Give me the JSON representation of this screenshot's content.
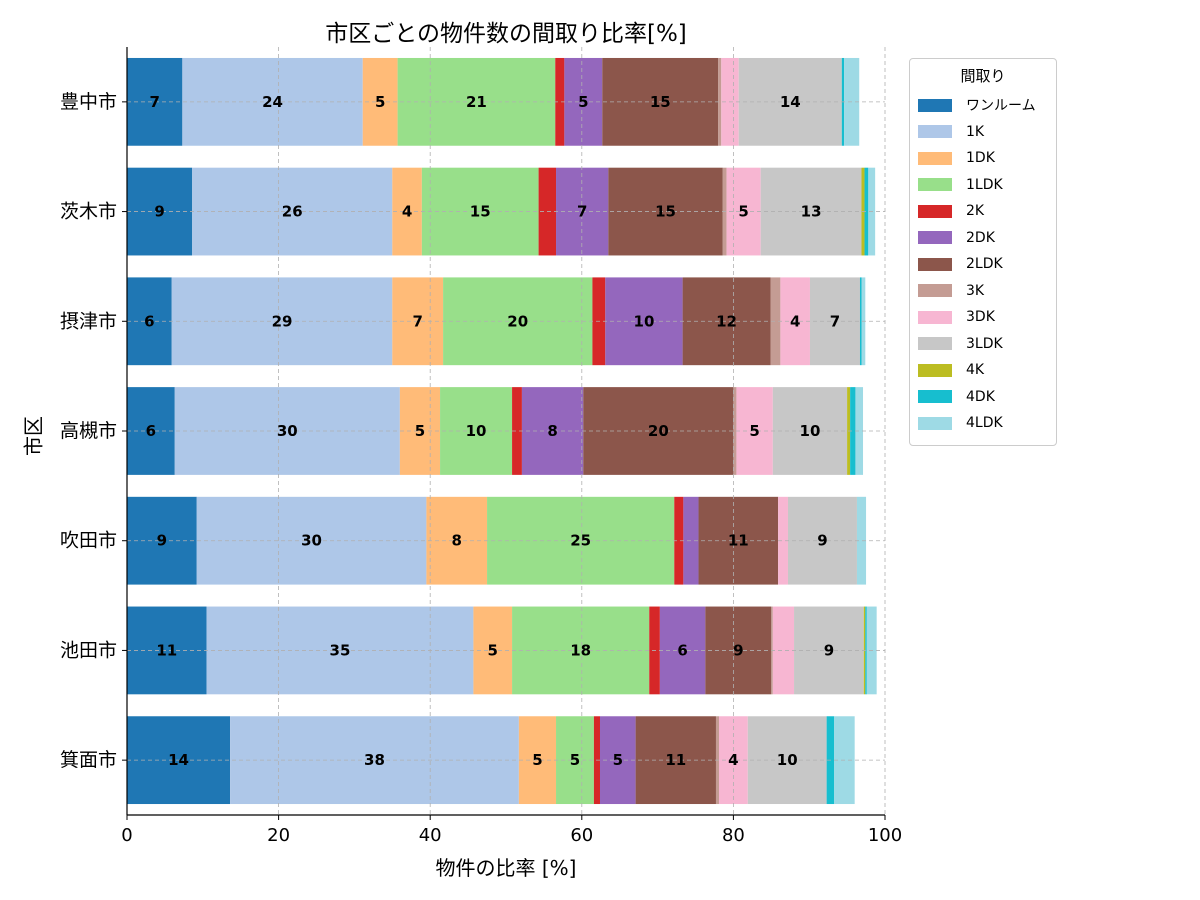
{
  "chart_data": {
    "type": "bar",
    "orientation": "horizontal",
    "stacked": true,
    "title": "市区ごとの物件数の間取り比率[%]",
    "xlabel": "物件の比率 [%]",
    "ylabel": "市区",
    "xlim": [
      0,
      100
    ],
    "xticks": [
      0,
      20,
      40,
      60,
      80,
      100
    ],
    "grid": true,
    "legend_title": "間取り",
    "legend_position": "outside-top-right",
    "categories": [
      "豊中市",
      "茨木市",
      "摂津市",
      "高槻市",
      "吹田市",
      "池田市",
      "箕面市"
    ],
    "series": [
      {
        "name": "ワンルーム",
        "color": "#1f77b4",
        "values": [
          7.3,
          8.6,
          5.9,
          6.3,
          9.2,
          10.5,
          13.6
        ]
      },
      {
        "name": "1K",
        "color": "#aec7e8",
        "values": [
          23.8,
          26.4,
          29.1,
          29.7,
          30.3,
          35.2,
          38.1
        ]
      },
      {
        "name": "1DK",
        "color": "#ffbb78",
        "values": [
          4.6,
          3.9,
          6.7,
          5.3,
          8.0,
          5.1,
          4.9
        ]
      },
      {
        "name": "1LDK",
        "color": "#98df8a",
        "values": [
          20.8,
          15.4,
          19.7,
          9.5,
          24.7,
          18.1,
          5.0
        ]
      },
      {
        "name": "2K",
        "color": "#d62728",
        "values": [
          1.2,
          2.3,
          1.7,
          1.3,
          1.2,
          1.4,
          0.8
        ]
      },
      {
        "name": "2DK",
        "color": "#9467bd",
        "values": [
          5.0,
          6.9,
          10.2,
          8.1,
          2.0,
          6.0,
          4.7
        ]
      },
      {
        "name": "2LDK",
        "color": "#8c564b",
        "values": [
          15.3,
          15.1,
          11.6,
          19.8,
          10.5,
          8.7,
          10.6
        ]
      },
      {
        "name": "3K",
        "color": "#c49c94",
        "values": [
          0.4,
          0.5,
          1.3,
          0.4,
          0.0,
          0.2,
          0.4
        ]
      },
      {
        "name": "3DK",
        "color": "#f7b6d2",
        "values": [
          2.3,
          4.5,
          3.9,
          4.8,
          1.3,
          2.8,
          3.8
        ]
      },
      {
        "name": "3LDK",
        "color": "#c7c7c7",
        "values": [
          13.6,
          13.3,
          6.6,
          9.8,
          9.1,
          9.2,
          10.4
        ]
      },
      {
        "name": "4K",
        "color": "#bcbd22",
        "values": [
          0.0,
          0.4,
          0.0,
          0.4,
          0.0,
          0.2,
          0.0
        ]
      },
      {
        "name": "4DK",
        "color": "#17becf",
        "values": [
          0.3,
          0.5,
          0.2,
          0.7,
          0.0,
          0.2,
          1.0
        ]
      },
      {
        "name": "4LDK",
        "color": "#9edae5",
        "values": [
          2.0,
          0.9,
          0.5,
          1.0,
          1.2,
          1.3,
          2.7
        ]
      }
    ]
  }
}
